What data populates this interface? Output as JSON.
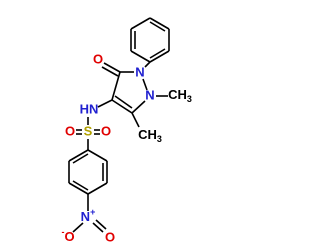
{
  "atoms": [
    {
      "text": "O"
    },
    {
      "text": "N"
    },
    {
      "text": "N"
    },
    {
      "text": "CH",
      "sub": "3"
    },
    {
      "text": "CH",
      "sub": "3"
    },
    {
      "text": "HN"
    },
    {
      "text": "O"
    },
    {
      "text": "S"
    },
    {
      "text": "O"
    },
    {
      "text": "N",
      "charge": "+"
    },
    {
      "text": "O",
      "charge": "-"
    },
    {
      "text": "O"
    }
  ]
}
